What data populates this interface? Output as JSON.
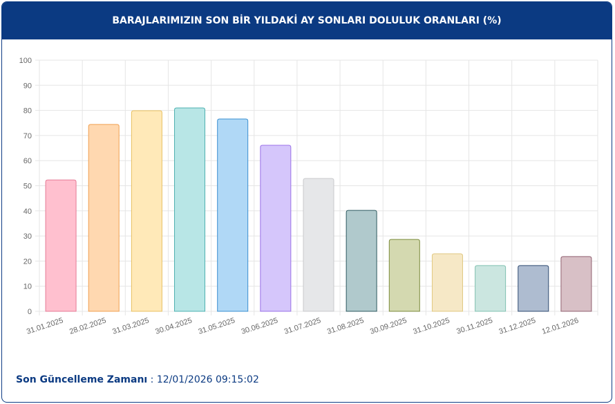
{
  "chart_data": {
    "type": "bar",
    "title": "BARAJLARIMIZIN SON BİR YILDAKİ AY SONLARI DOLULUK ORANLARI (%)",
    "categories": [
      "31.01.2025",
      "28.02.2025",
      "31.03.2025",
      "30.04.2025",
      "31.05.2025",
      "30.06.2025",
      "31.07.2025",
      "31.08.2025",
      "30.09.2025",
      "31.10.2025",
      "30.11.2025",
      "31.12.2025",
      "12.01.2026"
    ],
    "values": [
      52.3,
      74.4,
      79.9,
      81.0,
      76.6,
      66.1,
      52.9,
      40.2,
      28.6,
      22.9,
      18.2,
      18.2,
      21.8
    ],
    "colors": [
      "#ffc0cf",
      "#ffd8b0",
      "#ffe9b8",
      "#b8e6e6",
      "#b0d8f6",
      "#d5c6fb",
      "#e6e7e9",
      "#b0c9cc",
      "#d4d9b0",
      "#f6e8c6",
      "#cbe6e0",
      "#aebcd0",
      "#d8c0c6"
    ],
    "border_colors": [
      "#e57a95",
      "#f0a050",
      "#e8c060",
      "#4db0b0",
      "#3a8fd0",
      "#9a70e8",
      "#c8c9cc",
      "#2e5a60",
      "#7a8a3a",
      "#e0c880",
      "#80c0b0",
      "#2e4a70",
      "#906070"
    ],
    "ylim": [
      0,
      100
    ],
    "yticks": [
      0,
      10,
      20,
      30,
      40,
      50,
      60,
      70,
      80,
      90,
      100
    ],
    "grid": true
  },
  "footer": {
    "label": "Son Güncelleme Zamanı",
    "separator": ":",
    "value": "12/01/2026 09:15:02"
  }
}
